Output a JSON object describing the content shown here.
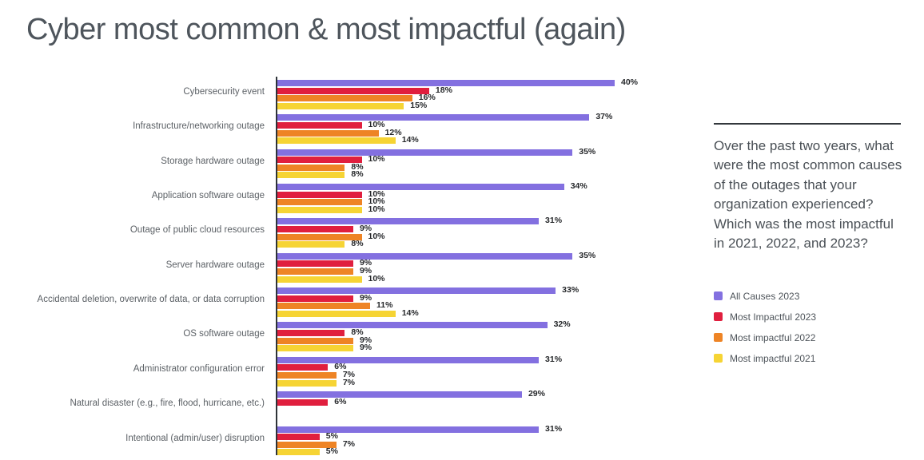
{
  "title": "Cyber most common & most impactful (again)",
  "question": "Over the past two years, what were the most common causes of the outages that your organization experienced? Which was the most impactful in 2021, 2022, and 2023?",
  "chart_data": {
    "type": "bar",
    "orientation": "horizontal",
    "title": "Cyber most common & most impactful (again)",
    "value_suffix": "%",
    "xlim": [
      0,
      42
    ],
    "grid": false,
    "legend_position": "right",
    "categories": [
      "Cybersecurity event",
      "Infrastructure/networking outage",
      "Storage hardware outage",
      "Application software outage",
      "Outage of public cloud resources",
      "Server hardware outage",
      "Accidental deletion, overwrite of data, or data corruption",
      "OS software outage",
      "Administrator configuration error",
      "Natural disaster (e.g., fire, flood, hurricane, etc.)",
      "Intentional (admin/user) disruption"
    ],
    "series": [
      {
        "name": "All Causes 2023",
        "color": "#8370e0",
        "values": [
          40,
          37,
          35,
          34,
          31,
          35,
          33,
          32,
          31,
          29,
          31
        ]
      },
      {
        "name": "Most Impactful 2023",
        "color": "#e01f3e",
        "values": [
          18,
          10,
          10,
          10,
          9,
          9,
          9,
          8,
          6,
          6,
          5
        ]
      },
      {
        "name": "Most impactful 2022",
        "color": "#ee8425",
        "values": [
          16,
          12,
          8,
          10,
          10,
          9,
          11,
          9,
          7,
          null,
          7
        ]
      },
      {
        "name": "Most impactful 2021",
        "color": "#f6d434",
        "values": [
          15,
          14,
          8,
          10,
          8,
          10,
          14,
          9,
          7,
          null,
          5
        ]
      }
    ]
  },
  "colors": {
    "title": "#4e555c",
    "axis": "#2e3338",
    "value_label": "#26282b",
    "category_label": "#5c6166"
  }
}
